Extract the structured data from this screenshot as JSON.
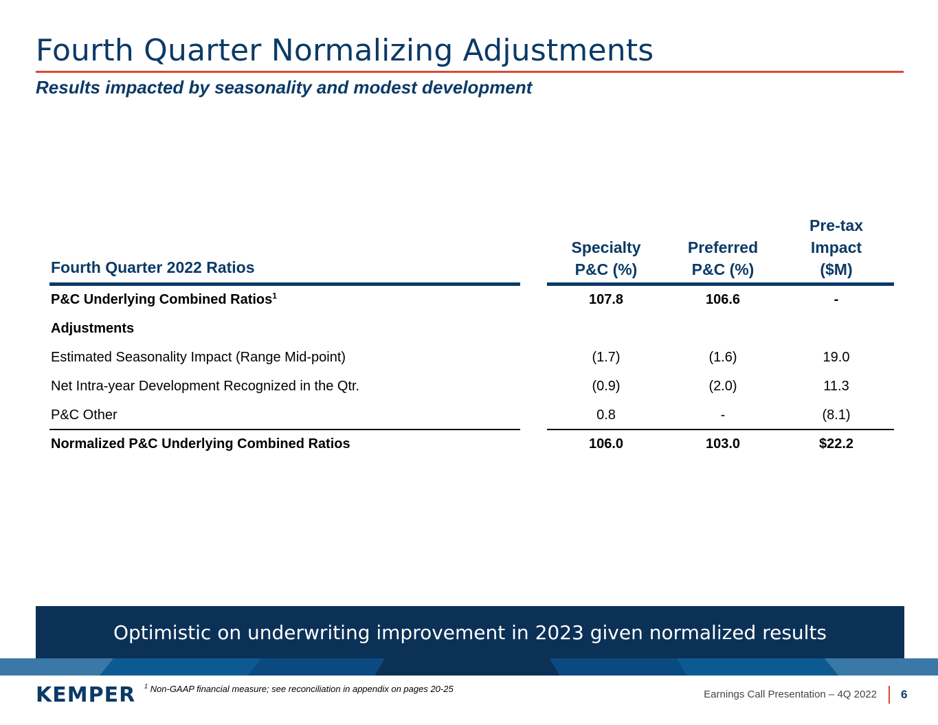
{
  "header": {
    "title": "Fourth Quarter Normalizing Adjustments",
    "subtitle": "Results impacted by seasonality and modest development"
  },
  "table": {
    "label_header": "Fourth Quarter 2022 Ratios",
    "col1_header_line1": "Specialty",
    "col1_header_line2": "P&C (%)",
    "col2_header_line1": "Preferred",
    "col2_header_line2": "P&C (%)",
    "col3_header_line1": "Pre-tax",
    "col3_header_line2": "Impact",
    "col3_header_line3": "($M)",
    "rows": [
      {
        "label": "P&C Underlying Combined Ratios",
        "sup": "1",
        "c1": "107.8",
        "c2": "106.6",
        "c3": "-"
      },
      {
        "label": "Adjustments",
        "c1": "",
        "c2": "",
        "c3": ""
      },
      {
        "label": "Estimated Seasonality Impact (Range Mid-point)",
        "c1": "(1.7)",
        "c2": "(1.6)",
        "c3": "19.0"
      },
      {
        "label": "Net Intra-year Development Recognized in the Qtr.",
        "c1": "(0.9)",
        "c2": "(2.0)",
        "c3": "11.3"
      },
      {
        "label": "P&C Other",
        "c1": "0.8",
        "c2": "-",
        "c3": "(8.1)"
      },
      {
        "label": "Normalized P&C Underlying Combined Ratios",
        "c1": "106.0",
        "c2": "103.0",
        "c3": "$22.2"
      }
    ]
  },
  "banner": {
    "text": "Optimistic on underwriting improvement in 2023 given normalized results"
  },
  "footer": {
    "logo": "KEMPER",
    "footnote_sup": "1",
    "footnote": "Non-GAAP financial measure; see reconciliation in appendix on pages 20-25",
    "presentation": "Earnings Call Presentation – 4Q 2022",
    "page_number": "6"
  },
  "colors": {
    "navy": "#0b3a66",
    "banner_navy": "#0b3157",
    "accent_red": "#d64a32",
    "stripe_blue": "#3a78a8"
  }
}
